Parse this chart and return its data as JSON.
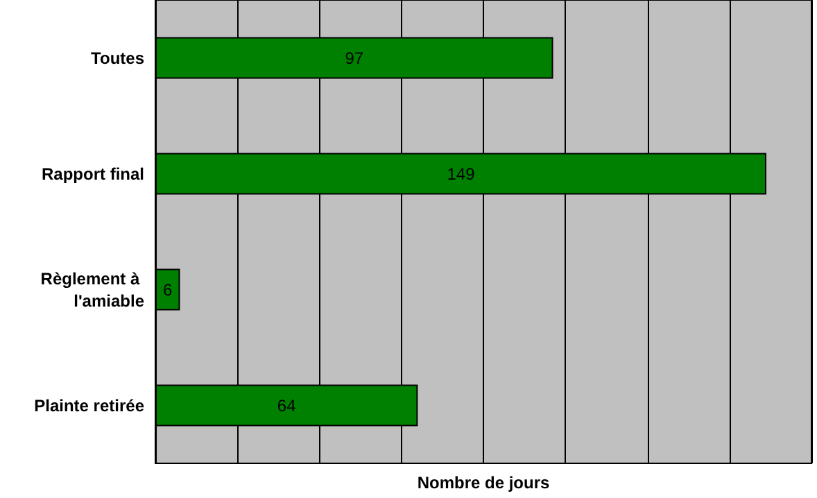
{
  "chart_data": {
    "type": "bar",
    "orientation": "horizontal",
    "xlabel": "Nombre de jours",
    "categories": [
      "Toutes",
      "Rapport final",
      "Règlement à l'amiable",
      "Plainte retirée"
    ],
    "values": [
      97,
      149,
      6,
      64
    ],
    "color": "#008000",
    "data_labels": true,
    "xlim": [
      0,
      160
    ],
    "xticks": [
      {
        "value": 0,
        "label": null
      },
      {
        "value": 20,
        "label": null
      },
      {
        "value": 40,
        "label": null
      },
      {
        "value": 60,
        "label": null
      },
      {
        "value": 80,
        "label": null
      },
      {
        "value": 100,
        "label": null
      },
      {
        "value": 120,
        "label": null
      },
      {
        "value": 140,
        "label": null
      },
      {
        "value": 160,
        "label": null
      }
    ],
    "grid": "x",
    "tick_labels": "y"
  }
}
